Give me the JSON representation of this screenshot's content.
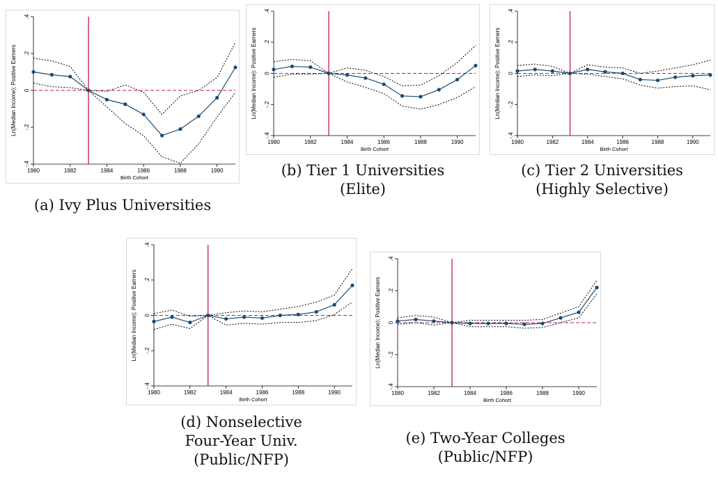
{
  "chart_data": [
    {
      "type": "line",
      "caption": [
        "(a) Ivy Plus Universities"
      ],
      "xlabel": "Birth Cohort",
      "ylabel": "Ln(Median Income); Positive Earners",
      "x": [
        1980,
        1981,
        1982,
        1983,
        1984,
        1985,
        1986,
        1987,
        1988,
        1989,
        1990,
        1991
      ],
      "estimate": [
        0.1,
        0.085,
        0.075,
        0.0,
        -0.05,
        -0.075,
        -0.13,
        -0.245,
        -0.21,
        -0.14,
        -0.04,
        0.125
      ],
      "ci_upper": [
        0.175,
        0.16,
        0.13,
        0.0,
        -0.005,
        0.03,
        -0.01,
        -0.13,
        -0.03,
        0.0,
        0.07,
        0.26
      ],
      "ci_lower": [
        0.04,
        0.02,
        0.015,
        0.0,
        -0.09,
        -0.18,
        -0.245,
        -0.36,
        -0.395,
        -0.29,
        -0.145,
        -0.01
      ],
      "xticks": [
        "1980",
        "1982",
        "1984",
        "1986",
        "1988",
        "1990"
      ],
      "yticks": [
        "-.4",
        "-.2",
        "0",
        ".2",
        ".4"
      ],
      "xlim": [
        1980,
        1991
      ],
      "ylim": [
        -0.4,
        0.4
      ],
      "vline": 1983,
      "hline": 0
    },
    {
      "type": "line",
      "caption": [
        "(b) Tier 1 Universities",
        "(Elite)"
      ],
      "xlabel": "Birth Cohort",
      "ylabel": "Ln(Median Income); Positive Earners",
      "x": [
        1980,
        1981,
        1982,
        1983,
        1984,
        1985,
        1986,
        1987,
        1988,
        1989,
        1990,
        1991
      ],
      "estimate": [
        0.025,
        0.045,
        0.04,
        0.0,
        -0.01,
        -0.03,
        -0.07,
        -0.145,
        -0.15,
        -0.105,
        -0.04,
        0.05
      ],
      "ci_upper": [
        0.075,
        0.09,
        0.08,
        0.0,
        0.035,
        0.02,
        -0.02,
        -0.08,
        -0.075,
        -0.015,
        0.07,
        0.18
      ],
      "ci_lower": [
        -0.025,
        -0.005,
        -0.005,
        0.0,
        -0.055,
        -0.09,
        -0.13,
        -0.21,
        -0.23,
        -0.2,
        -0.155,
        -0.085
      ],
      "xticks": [
        "1980",
        "1982",
        "1984",
        "1986",
        "1988",
        "1990"
      ],
      "yticks": [
        "-.4",
        "-.2",
        "0",
        ".2",
        ".4"
      ],
      "xlim": [
        1980,
        1991
      ],
      "ylim": [
        -0.4,
        0.4
      ],
      "vline": 1983,
      "hline": 0
    },
    {
      "type": "line",
      "caption": [
        "(c) Tier 2 Universities",
        "(Highly Selective)"
      ],
      "xlabel": "Birth Cohort",
      "ylabel": "Ln(Median Income); Positive Earners",
      "x": [
        1980,
        1981,
        1982,
        1983,
        1984,
        1985,
        1986,
        1987,
        1988,
        1989,
        1990,
        1991
      ],
      "estimate": [
        0.015,
        0.025,
        0.015,
        0.0,
        0.025,
        0.01,
        0.0,
        -0.04,
        -0.045,
        -0.025,
        -0.015,
        -0.01
      ],
      "ci_upper": [
        0.05,
        0.06,
        0.045,
        0.0,
        0.055,
        0.04,
        0.035,
        0.0,
        0.015,
        0.035,
        0.055,
        0.085
      ],
      "ci_lower": [
        -0.02,
        -0.01,
        -0.015,
        0.0,
        -0.005,
        -0.02,
        -0.035,
        -0.075,
        -0.095,
        -0.085,
        -0.08,
        -0.105
      ],
      "xticks": [
        "1980",
        "1982",
        "1984",
        "1986",
        "1988",
        "1990"
      ],
      "yticks": [
        "-.4",
        "-.2",
        "0",
        ".2",
        ".4"
      ],
      "xlim": [
        1980,
        1991
      ],
      "ylim": [
        -0.4,
        0.4
      ],
      "vline": 1983,
      "hline": 0
    },
    {
      "type": "line",
      "caption": [
        "(d) Nonselective",
        "Four-Year Univ.",
        "(Public/NFP)"
      ],
      "xlabel": "Birth Cohort",
      "ylabel": "Ln(Median Income); Positive Earners",
      "x": [
        1980,
        1981,
        1982,
        1983,
        1984,
        1985,
        1986,
        1987,
        1988,
        1989,
        1990,
        1991
      ],
      "estimate": [
        -0.035,
        -0.01,
        -0.04,
        0.0,
        -0.02,
        -0.01,
        -0.015,
        0.0,
        0.005,
        0.02,
        0.06,
        0.17
      ],
      "ci_upper": [
        0.01,
        0.03,
        -0.005,
        0.0,
        0.015,
        0.025,
        0.02,
        0.035,
        0.05,
        0.075,
        0.115,
        0.265
      ],
      "ci_lower": [
        -0.08,
        -0.05,
        -0.075,
        0.0,
        -0.055,
        -0.045,
        -0.05,
        -0.04,
        -0.04,
        -0.03,
        0.005,
        0.075
      ],
      "xticks": [
        "1980",
        "1982",
        "1984",
        "1986",
        "1988",
        "1990"
      ],
      "yticks": [
        "-.4",
        "-.2",
        "0",
        ".2",
        ".4"
      ],
      "xlim": [
        1980,
        1991
      ],
      "ylim": [
        -0.4,
        0.4
      ],
      "vline": 1983,
      "hline": 0
    },
    {
      "type": "line",
      "caption": [
        "(e) Two-Year Colleges",
        "(Public/NFP)"
      ],
      "xlabel": "Birth Cohort",
      "ylabel": "Ln(Median Income); Positive Earners",
      "x": [
        1980,
        1981,
        1982,
        1983,
        1984,
        1985,
        1986,
        1987,
        1988,
        1989,
        1990,
        1991
      ],
      "estimate": [
        0.01,
        0.02,
        0.01,
        0.0,
        -0.005,
        -0.005,
        -0.005,
        -0.01,
        -0.005,
        0.03,
        0.065,
        0.22
      ],
      "ci_upper": [
        0.03,
        0.045,
        0.035,
        0.0,
        0.015,
        0.015,
        0.015,
        0.015,
        0.02,
        0.06,
        0.1,
        0.265
      ],
      "ci_lower": [
        -0.01,
        0.0,
        -0.015,
        0.0,
        -0.025,
        -0.025,
        -0.025,
        -0.035,
        -0.03,
        0.0,
        0.03,
        0.18
      ],
      "xticks": [
        "1980",
        "1982",
        "1984",
        "1986",
        "1988",
        "1990"
      ],
      "yticks": [
        "-.4",
        "-.2",
        "0",
        ".2",
        ".4"
      ],
      "xlim": [
        1980,
        1991
      ],
      "ylim": [
        -0.4,
        0.4
      ],
      "vline": 1983,
      "hline": 0
    }
  ],
  "colors": {
    "estimate": "#1a4a72",
    "ci": "#000000",
    "vline": "#c0185a",
    "hline": "#c0185a",
    "frame": "#d9d9d9"
  }
}
